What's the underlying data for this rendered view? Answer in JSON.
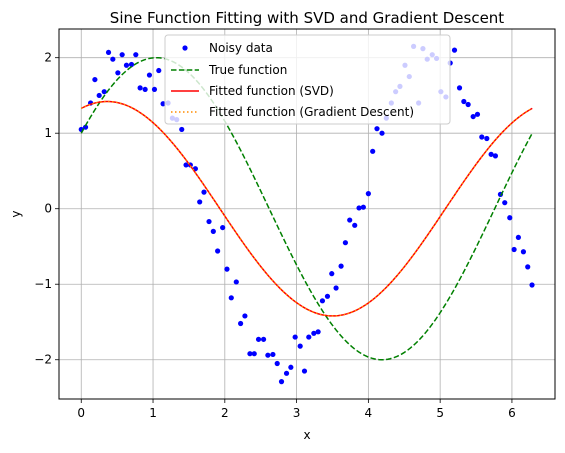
{
  "chart_data": {
    "type": "scatter",
    "title": "Sine Function Fitting with SVD and Gradient Descent",
    "xlabel": "x",
    "ylabel": "y",
    "xlim": [
      -0.31,
      6.6
    ],
    "ylim": [
      -2.52,
      2.38
    ],
    "xticks": [
      0,
      1,
      2,
      3,
      4,
      5,
      6
    ],
    "yticks": [
      -2,
      -1,
      0,
      1,
      2
    ],
    "xtick_labels": [
      "0",
      "1",
      "2",
      "3",
      "4",
      "5",
      "6"
    ],
    "ytick_labels": [
      "−2",
      "−1",
      "0",
      "1",
      "2"
    ],
    "grid": true,
    "legend_position": "top-center",
    "series": [
      {
        "name": "Noisy data",
        "kind": "scatter",
        "color": "#0000ff",
        "x": [
          0.0,
          0.06,
          0.13,
          0.19,
          0.25,
          0.32,
          0.38,
          0.44,
          0.51,
          0.57,
          0.63,
          0.7,
          0.76,
          0.82,
          0.89,
          0.95,
          1.02,
          1.08,
          1.14,
          1.21,
          1.27,
          1.33,
          1.4,
          1.46,
          1.52,
          1.59,
          1.65,
          1.71,
          1.78,
          1.84,
          1.9,
          1.97,
          2.03,
          2.09,
          2.16,
          2.22,
          2.28,
          2.35,
          2.41,
          2.47,
          2.54,
          2.6,
          2.67,
          2.73,
          2.79,
          2.86,
          2.92,
          2.98,
          3.05,
          3.11,
          3.17,
          3.24,
          3.3,
          3.36,
          3.43,
          3.49,
          3.55,
          3.62,
          3.68,
          3.74,
          3.81,
          3.87,
          3.93,
          4.0,
          4.06,
          4.12,
          4.19,
          4.25,
          4.32,
          4.38,
          4.44,
          4.51,
          4.57,
          4.63,
          4.7,
          4.76,
          4.82,
          4.89,
          4.95,
          5.01,
          5.08,
          5.14,
          5.2,
          5.27,
          5.33,
          5.39,
          5.46,
          5.52,
          5.58,
          5.65,
          5.71,
          5.77,
          5.84,
          5.9,
          5.97,
          6.03,
          6.09,
          6.16,
          6.22,
          6.28
        ],
        "y": [
          1.05,
          1.08,
          1.4,
          1.71,
          1.5,
          1.55,
          2.07,
          1.98,
          1.8,
          2.04,
          1.9,
          1.91,
          2.04,
          1.6,
          1.58,
          1.77,
          1.58,
          1.83,
          1.39,
          1.4,
          1.2,
          1.18,
          1.05,
          0.58,
          0.58,
          0.53,
          0.09,
          0.22,
          -0.17,
          -0.3,
          -0.56,
          -0.25,
          -0.8,
          -1.18,
          -0.97,
          -1.52,
          -1.42,
          -1.92,
          -1.92,
          -1.73,
          -1.73,
          -1.94,
          -1.93,
          -2.05,
          -2.29,
          -2.18,
          -2.1,
          -1.7,
          -1.82,
          -2.15,
          -1.7,
          -1.65,
          -1.63,
          -1.22,
          -1.16,
          -0.86,
          -1.05,
          -0.76,
          -0.45,
          -0.15,
          -0.22,
          0.01,
          0.02,
          0.2,
          0.76,
          1.06,
          1.0,
          1.2,
          1.4,
          1.55,
          1.62,
          1.9,
          1.75,
          2.15,
          1.4,
          2.12,
          1.98,
          2.04,
          1.99,
          1.55,
          1.48,
          1.93,
          2.1,
          1.6,
          1.42,
          1.38,
          1.22,
          1.25,
          0.95,
          0.93,
          0.72,
          0.7,
          0.19,
          0.08,
          -0.12,
          -0.54,
          -0.38,
          -0.57,
          -0.77,
          -1.01
        ]
      },
      {
        "name": "True function",
        "kind": "line",
        "style": "dashed",
        "color": "#008000",
        "amplitude": 2.0,
        "frequency": 1.0,
        "phase": 0.5236
      },
      {
        "name": "Fitted function (SVD)",
        "kind": "line",
        "style": "solid",
        "color": "#ff0000",
        "amplitude": 1.42,
        "frequency": 1.0,
        "phase": 1.21
      },
      {
        "name": "Fitted function (Gradient Descent)",
        "kind": "line",
        "style": "dotted",
        "color": "#ff8c00",
        "amplitude": 1.42,
        "frequency": 1.0,
        "phase": 1.21
      }
    ]
  }
}
